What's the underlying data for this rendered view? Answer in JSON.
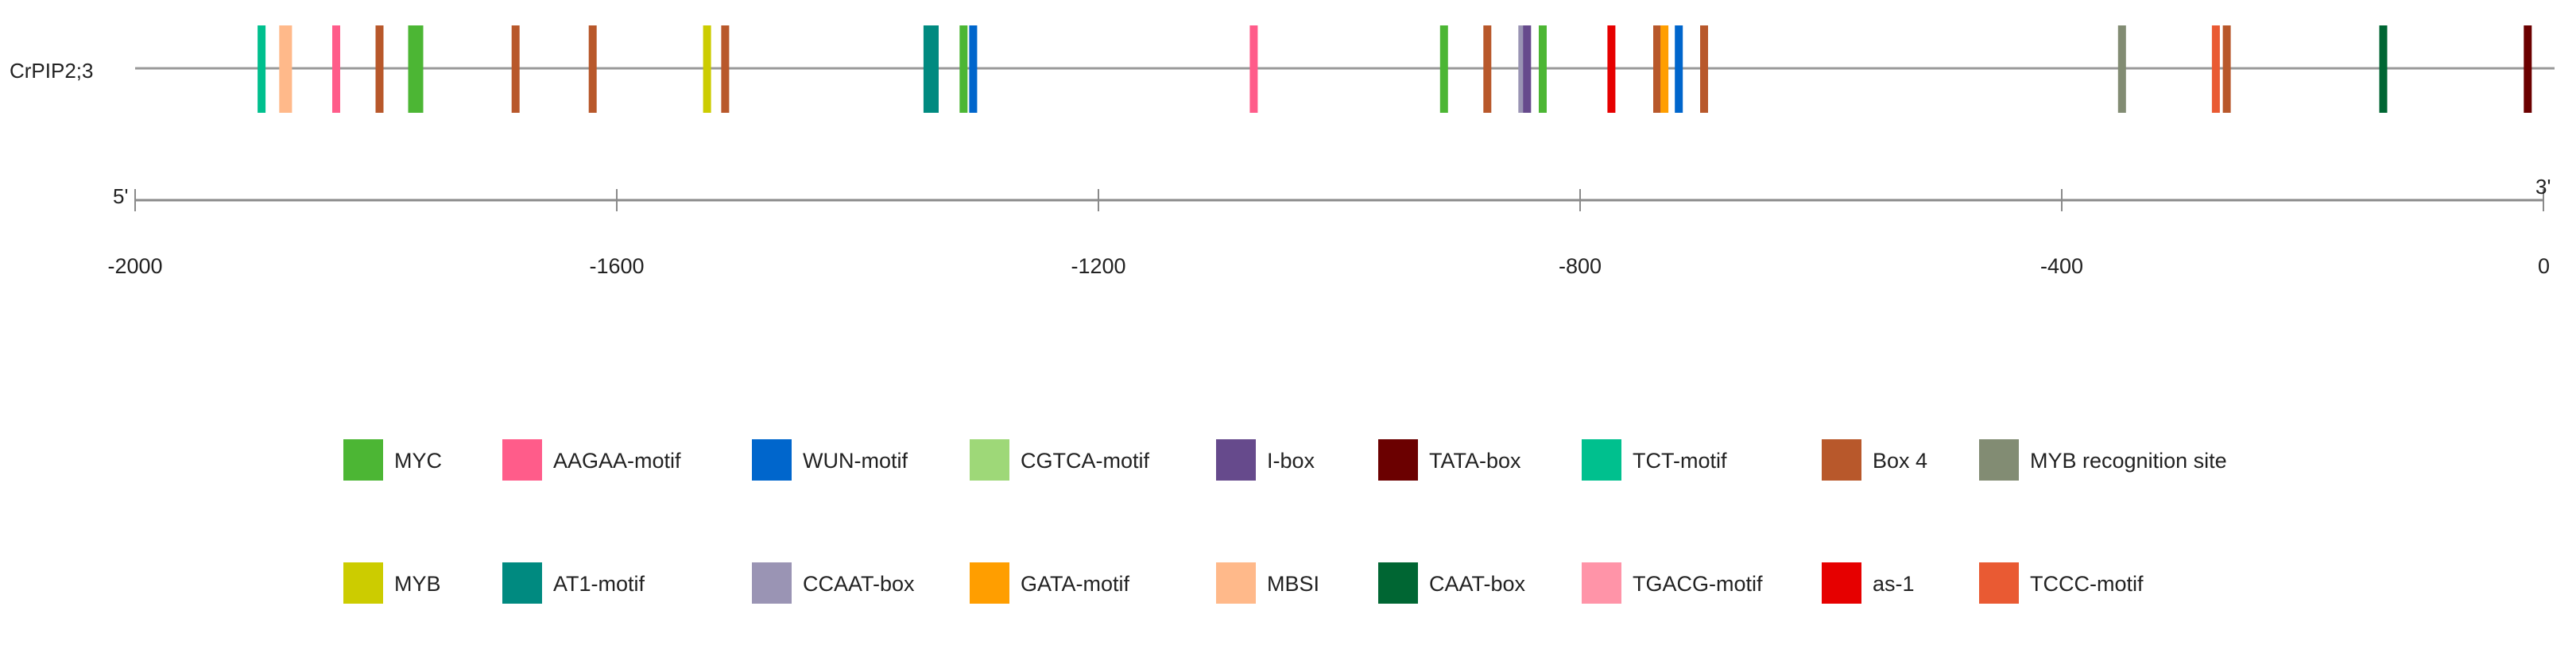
{
  "chart_data": {
    "type": "promoter-element-map",
    "gene": "CrPIP2;3",
    "axis": {
      "range": [
        -2000,
        0
      ],
      "ticks": [
        -2000,
        -1600,
        -1200,
        -800,
        -400,
        0
      ],
      "tick_labels": [
        "-2000",
        "-1600",
        "-1200",
        "-800",
        "-400",
        "0"
      ],
      "five_prime_label": "5'",
      "three_prime_label": "3'"
    },
    "elements": [
      {
        "type": "TCT-motif",
        "position": -1895
      },
      {
        "type": "MBSI",
        "position": -1877
      },
      {
        "type": "MBSI",
        "position": -1873
      },
      {
        "type": "AAGAA-motif",
        "position": -1833
      },
      {
        "type": "Box 4",
        "position": -1797
      },
      {
        "type": "MYC",
        "position": -1770
      },
      {
        "type": "MYC",
        "position": -1764
      },
      {
        "type": "Box 4",
        "position": -1684
      },
      {
        "type": "Box 4",
        "position": -1620
      },
      {
        "type": "MYB",
        "position": -1525
      },
      {
        "type": "Box 4",
        "position": -1510
      },
      {
        "type": "AT1-motif",
        "position": -1342
      },
      {
        "type": "AT1-motif",
        "position": -1336
      },
      {
        "type": "MYC",
        "position": -1312
      },
      {
        "type": "WUN-motif",
        "position": -1304
      },
      {
        "type": "AAGAA-motif",
        "position": -1071
      },
      {
        "type": "MYC",
        "position": -913
      },
      {
        "type": "Box 4",
        "position": -877
      },
      {
        "type": "CCAAT-box",
        "position": -848
      },
      {
        "type": "I-box",
        "position": -844
      },
      {
        "type": "MYC",
        "position": -831
      },
      {
        "type": "as-1",
        "position": -774
      },
      {
        "type": "Box 4",
        "position": -736
      },
      {
        "type": "GATA-motif",
        "position": -730
      },
      {
        "type": "WUN-motif",
        "position": -718
      },
      {
        "type": "Box 4",
        "position": -697
      },
      {
        "type": "MYB recognition site",
        "position": -350
      },
      {
        "type": "TCCC-motif",
        "position": -272
      },
      {
        "type": "Box 4",
        "position": -263
      },
      {
        "type": "CAAT-box",
        "position": -133
      },
      {
        "type": "TATA-box",
        "position": -13
      }
    ],
    "legend": [
      [
        {
          "label": "MYC",
          "color": "#4cb634"
        },
        {
          "label": "AAGAA-motif",
          "color": "#ff5c8a"
        },
        {
          "label": "WUN-motif",
          "color": "#0066cc"
        },
        {
          "label": "CGTCA-motif",
          "color": "#9ed878"
        },
        {
          "label": "I-box",
          "color": "#664a8c"
        },
        {
          "label": "TATA-box",
          "color": "#6b0000"
        },
        {
          "label": "TCT-motif",
          "color": "#00c08e"
        },
        {
          "label": "Box 4",
          "color": "#b8582b"
        },
        {
          "label": "MYB recognition site",
          "color": "#828c73"
        }
      ],
      [
        {
          "label": "MYB",
          "color": "#cccc00"
        },
        {
          "label": "AT1-motif",
          "color": "#008a80"
        },
        {
          "label": "CCAAT-box",
          "color": "#9a94b4"
        },
        {
          "label": "GATA-motif",
          "color": "#ff9e00"
        },
        {
          "label": "MBSI",
          "color": "#ffb98a"
        },
        {
          "label": "CAAT-box",
          "color": "#006633"
        },
        {
          "label": "TGACG-motif",
          "color": "#ff94a8"
        },
        {
          "label": "as-1",
          "color": "#e60000"
        },
        {
          "label": "TCCC-motif",
          "color": "#e95a33"
        }
      ]
    ]
  }
}
